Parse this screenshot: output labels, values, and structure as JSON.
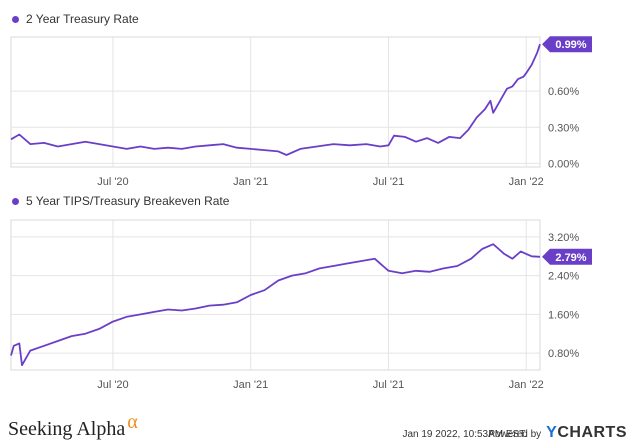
{
  "colors": {
    "series": "#6a3fc8",
    "grid": "#e4e4e4",
    "axis_text": "#555555",
    "brand_alpha": "#f28c1e",
    "ycharts_y": "#1a6fd4"
  },
  "chart_data": [
    {
      "type": "line",
      "legend": "2 Year Treasury Rate",
      "x_ticks": [
        "Jul '20",
        "Jan '21",
        "Jul '21",
        "Jan '22"
      ],
      "y_ticks": [
        "0.00%",
        "0.30%",
        "0.60%"
      ],
      "ylim": [
        -0.03,
        1.05
      ],
      "xlim": [
        2020.13,
        2022.05
      ],
      "last_value_label": "0.99%",
      "grid": true,
      "points": [
        [
          2020.13,
          0.2
        ],
        [
          2020.16,
          0.24
        ],
        [
          2020.2,
          0.16
        ],
        [
          2020.25,
          0.17
        ],
        [
          2020.3,
          0.14
        ],
        [
          2020.35,
          0.16
        ],
        [
          2020.4,
          0.18
        ],
        [
          2020.45,
          0.16
        ],
        [
          2020.5,
          0.14
        ],
        [
          2020.55,
          0.12
        ],
        [
          2020.6,
          0.14
        ],
        [
          2020.65,
          0.12
        ],
        [
          2020.7,
          0.13
        ],
        [
          2020.75,
          0.12
        ],
        [
          2020.8,
          0.14
        ],
        [
          2020.85,
          0.15
        ],
        [
          2020.9,
          0.16
        ],
        [
          2020.95,
          0.13
        ],
        [
          2021.0,
          0.12
        ],
        [
          2021.05,
          0.11
        ],
        [
          2021.1,
          0.1
        ],
        [
          2021.13,
          0.07
        ],
        [
          2021.18,
          0.12
        ],
        [
          2021.24,
          0.14
        ],
        [
          2021.3,
          0.16
        ],
        [
          2021.36,
          0.15
        ],
        [
          2021.42,
          0.16
        ],
        [
          2021.47,
          0.14
        ],
        [
          2021.5,
          0.15
        ],
        [
          2021.52,
          0.23
        ],
        [
          2021.56,
          0.22
        ],
        [
          2021.6,
          0.18
        ],
        [
          2021.64,
          0.21
        ],
        [
          2021.68,
          0.17
        ],
        [
          2021.72,
          0.22
        ],
        [
          2021.76,
          0.21
        ],
        [
          2021.79,
          0.28
        ],
        [
          2021.82,
          0.38
        ],
        [
          2021.85,
          0.45
        ],
        [
          2021.87,
          0.52
        ],
        [
          2021.88,
          0.42
        ],
        [
          2021.9,
          0.5
        ],
        [
          2021.93,
          0.62
        ],
        [
          2021.95,
          0.64
        ],
        [
          2021.97,
          0.7
        ],
        [
          2021.99,
          0.72
        ],
        [
          2022.0,
          0.75
        ],
        [
          2022.02,
          0.82
        ],
        [
          2022.04,
          0.92
        ],
        [
          2022.05,
          0.99
        ]
      ]
    },
    {
      "type": "line",
      "legend": "5 Year TIPS/Treasury Breakeven Rate",
      "x_ticks": [
        "Jul '20",
        "Jan '21",
        "Jul '21",
        "Jan '22"
      ],
      "y_ticks": [
        "0.80%",
        "1.60%",
        "2.40%",
        "3.20%"
      ],
      "ylim": [
        0.45,
        3.55
      ],
      "xlim": [
        2020.13,
        2022.05
      ],
      "last_value_label": "2.79%",
      "grid": true,
      "points": [
        [
          2020.13,
          0.75
        ],
        [
          2020.14,
          0.95
        ],
        [
          2020.16,
          1.0
        ],
        [
          2020.17,
          0.55
        ],
        [
          2020.2,
          0.85
        ],
        [
          2020.25,
          0.95
        ],
        [
          2020.3,
          1.05
        ],
        [
          2020.35,
          1.15
        ],
        [
          2020.4,
          1.2
        ],
        [
          2020.45,
          1.3
        ],
        [
          2020.5,
          1.45
        ],
        [
          2020.55,
          1.55
        ],
        [
          2020.6,
          1.6
        ],
        [
          2020.65,
          1.65
        ],
        [
          2020.7,
          1.7
        ],
        [
          2020.75,
          1.68
        ],
        [
          2020.8,
          1.72
        ],
        [
          2020.85,
          1.78
        ],
        [
          2020.9,
          1.8
        ],
        [
          2020.95,
          1.85
        ],
        [
          2021.0,
          2.0
        ],
        [
          2021.05,
          2.1
        ],
        [
          2021.1,
          2.3
        ],
        [
          2021.15,
          2.4
        ],
        [
          2021.2,
          2.45
        ],
        [
          2021.25,
          2.55
        ],
        [
          2021.3,
          2.6
        ],
        [
          2021.35,
          2.65
        ],
        [
          2021.4,
          2.7
        ],
        [
          2021.45,
          2.75
        ],
        [
          2021.48,
          2.6
        ],
        [
          2021.5,
          2.5
        ],
        [
          2021.55,
          2.45
        ],
        [
          2021.6,
          2.5
        ],
        [
          2021.65,
          2.48
        ],
        [
          2021.7,
          2.55
        ],
        [
          2021.75,
          2.6
        ],
        [
          2021.8,
          2.75
        ],
        [
          2021.84,
          2.95
        ],
        [
          2021.88,
          3.05
        ],
        [
          2021.9,
          2.95
        ],
        [
          2021.92,
          2.85
        ],
        [
          2021.95,
          2.75
        ],
        [
          2021.98,
          2.9
        ],
        [
          2022.0,
          2.85
        ],
        [
          2022.02,
          2.8
        ],
        [
          2022.05,
          2.79
        ]
      ]
    }
  ],
  "footer": {
    "brand": "Seeking Alpha",
    "brand_alpha": "α",
    "timestamp": "Jan 19 2022, 10:53AM EST.",
    "powered_by": "Powered by",
    "ycharts_y": "Y",
    "ycharts_rest": "CHARTS"
  }
}
